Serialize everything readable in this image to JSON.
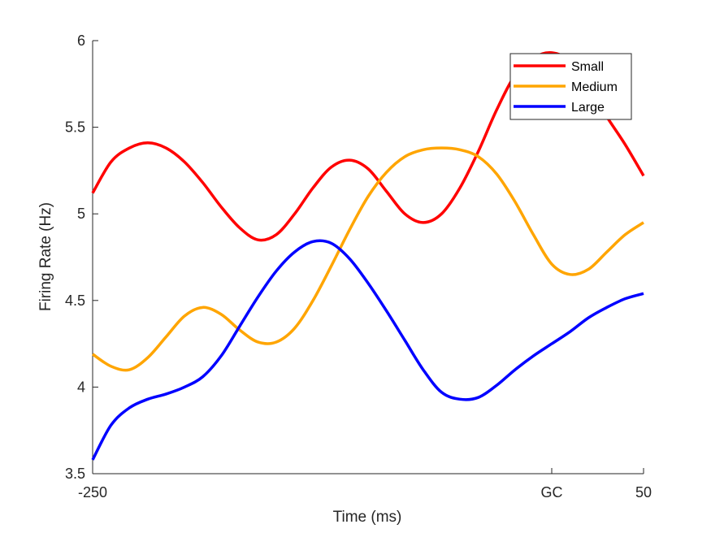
{
  "chart_data": {
    "type": "line",
    "xlabel": "Time (ms)",
    "ylabel": "Firing Rate (Hz)",
    "xlim": [
      -250,
      50
    ],
    "ylim": [
      3.5,
      6
    ],
    "xticks": [
      {
        "value": -250,
        "label": "-250"
      },
      {
        "value": 0,
        "label": "GC"
      },
      {
        "value": 50,
        "label": "50"
      }
    ],
    "yticks": [
      {
        "value": 3.5,
        "label": "3.5"
      },
      {
        "value": 4,
        "label": "4"
      },
      {
        "value": 4.5,
        "label": "4.5"
      },
      {
        "value": 5,
        "label": "5"
      },
      {
        "value": 5.5,
        "label": "5.5"
      },
      {
        "value": 6,
        "label": "6"
      }
    ],
    "grid": false,
    "legend_position": "top-right",
    "series": [
      {
        "name": "Small",
        "color": "#ff0000",
        "x": [
          -250,
          -240,
          -230,
          -220,
          -210,
          -200,
          -190,
          -180,
          -170,
          -160,
          -150,
          -140,
          -130,
          -120,
          -110,
          -100,
          -90,
          -80,
          -70,
          -60,
          -50,
          -40,
          -30,
          -20,
          -10,
          0,
          10,
          20,
          30,
          40,
          50
        ],
        "y": [
          5.12,
          5.3,
          5.38,
          5.41,
          5.38,
          5.3,
          5.18,
          5.04,
          4.92,
          4.85,
          4.88,
          5.0,
          5.15,
          5.27,
          5.31,
          5.26,
          5.13,
          5.0,
          4.95,
          5.0,
          5.15,
          5.36,
          5.6,
          5.8,
          5.9,
          5.93,
          5.88,
          5.73,
          5.56,
          5.4,
          5.22
        ]
      },
      {
        "name": "Medium",
        "color": "#ffa500",
        "x": [
          -250,
          -240,
          -230,
          -220,
          -210,
          -200,
          -190,
          -180,
          -170,
          -160,
          -150,
          -140,
          -130,
          -120,
          -110,
          -100,
          -90,
          -80,
          -70,
          -60,
          -50,
          -40,
          -30,
          -20,
          -10,
          0,
          10,
          20,
          30,
          40,
          50
        ],
        "y": [
          4.19,
          4.12,
          4.1,
          4.17,
          4.29,
          4.41,
          4.46,
          4.42,
          4.33,
          4.26,
          4.26,
          4.34,
          4.5,
          4.7,
          4.91,
          5.1,
          5.24,
          5.33,
          5.37,
          5.38,
          5.37,
          5.33,
          5.23,
          5.07,
          4.88,
          4.71,
          4.65,
          4.68,
          4.78,
          4.88,
          4.95
        ]
      },
      {
        "name": "Large",
        "color": "#0000ff",
        "x": [
          -250,
          -240,
          -230,
          -220,
          -210,
          -200,
          -190,
          -180,
          -170,
          -160,
          -150,
          -140,
          -130,
          -120,
          -110,
          -100,
          -90,
          -80,
          -70,
          -60,
          -50,
          -40,
          -30,
          -20,
          -10,
          0,
          10,
          20,
          30,
          40,
          50
        ],
        "y": [
          3.58,
          3.78,
          3.88,
          3.93,
          3.96,
          4.0,
          4.06,
          4.18,
          4.35,
          4.52,
          4.67,
          4.78,
          4.84,
          4.83,
          4.74,
          4.6,
          4.44,
          4.27,
          4.1,
          3.97,
          3.93,
          3.94,
          4.01,
          4.1,
          4.18,
          4.25,
          4.32,
          4.4,
          4.46,
          4.51,
          4.54
        ]
      }
    ]
  }
}
